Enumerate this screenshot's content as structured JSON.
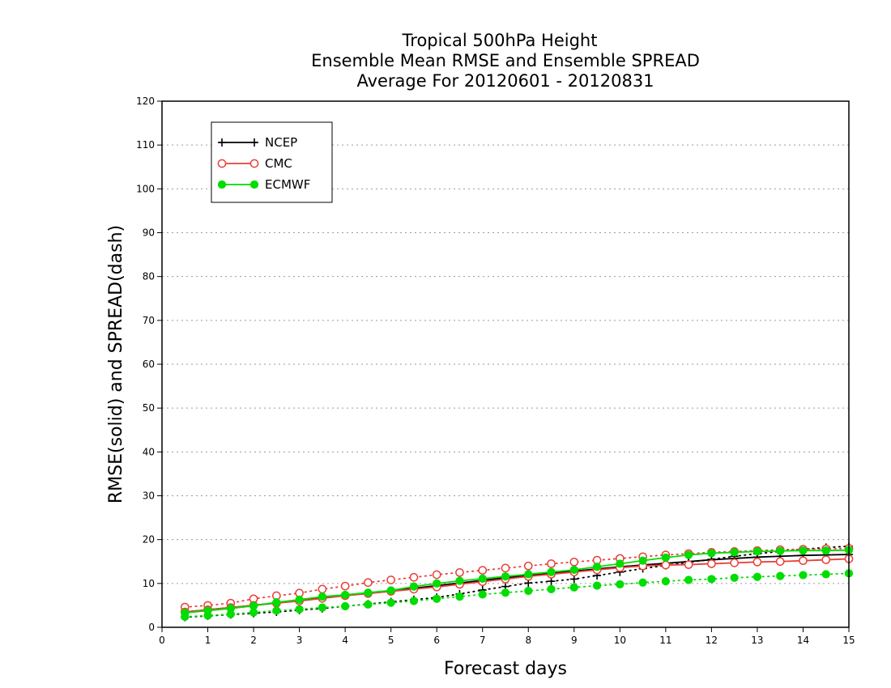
{
  "chart_data": {
    "type": "line",
    "title_lines": [
      "Tropical 500hPa Height",
      "Ensemble Mean RMSE and Ensemble SPREAD",
      "Average For 20120601 - 20120831"
    ],
    "xlabel": "Forecast days",
    "ylabel": "RMSE(solid) and SPREAD(dash)",
    "xlim": [
      0,
      15
    ],
    "ylim": [
      0,
      120
    ],
    "x_ticks": [
      0,
      1,
      2,
      3,
      4,
      5,
      6,
      7,
      8,
      9,
      10,
      11,
      12,
      13,
      14,
      15
    ],
    "y_ticks": [
      0,
      10,
      20,
      30,
      40,
      50,
      60,
      70,
      80,
      90,
      100,
      110,
      120
    ],
    "grid": "horizontal dotted",
    "legend_position": "top-left",
    "x": [
      0.5,
      1,
      1.5,
      2,
      2.5,
      3,
      3.5,
      4,
      4.5,
      5,
      5.5,
      6,
      6.5,
      7,
      7.5,
      8,
      8.5,
      9,
      9.5,
      10,
      10.5,
      11,
      11.5,
      12,
      12.5,
      13,
      13.5,
      14,
      14.5,
      15
    ],
    "series": [
      {
        "name": "NCEP",
        "color": "#000000",
        "marker": "plus",
        "rmse": [
          3.5,
          4.0,
          4.5,
          5.0,
          5.6,
          6.2,
          6.8,
          7.3,
          7.8,
          8.3,
          8.9,
          9.5,
          10.1,
          10.7,
          11.3,
          11.8,
          12.3,
          12.8,
          13.3,
          13.8,
          14.2,
          14.6,
          15.0,
          15.4,
          15.7,
          16.0,
          16.2,
          16.4,
          16.5,
          16.6
        ],
        "spread": [
          2.3,
          2.6,
          2.9,
          3.2,
          3.5,
          3.9,
          4.3,
          4.8,
          5.3,
          5.8,
          6.3,
          6.8,
          7.6,
          8.5,
          9.3,
          10.1,
          10.5,
          11.0,
          11.8,
          12.6,
          13.4,
          14.1,
          14.8,
          15.5,
          16.2,
          16.8,
          17.3,
          17.8,
          18.2,
          18.5
        ]
      },
      {
        "name": "CMC",
        "color": "#e8403a",
        "marker": "open-circle",
        "rmse": [
          3.5,
          4.0,
          4.5,
          5.0,
          5.5,
          6.0,
          6.6,
          7.2,
          7.7,
          8.2,
          8.7,
          9.2,
          9.8,
          10.4,
          11.0,
          11.6,
          12.1,
          12.6,
          13.1,
          13.6,
          14.0,
          14.2,
          14.3,
          14.5,
          14.7,
          14.9,
          15.0,
          15.2,
          15.4,
          15.6
        ],
        "spread": [
          4.6,
          5.0,
          5.5,
          6.5,
          7.2,
          7.8,
          8.7,
          9.4,
          10.2,
          10.8,
          11.4,
          12.0,
          12.5,
          13.0,
          13.5,
          14.0,
          14.5,
          14.9,
          15.3,
          15.7,
          16.1,
          16.5,
          16.8,
          17.1,
          17.3,
          17.5,
          17.7,
          17.8,
          17.9,
          18.0
        ]
      },
      {
        "name": "ECMWF",
        "color": "#00dd00",
        "marker": "filled-circle",
        "rmse": [
          3.3,
          3.8,
          4.3,
          4.9,
          5.7,
          6.3,
          7.0,
          7.4,
          7.9,
          8.4,
          9.3,
          10.0,
          10.6,
          11.1,
          11.6,
          12.1,
          12.6,
          13.1,
          13.8,
          14.5,
          15.2,
          15.9,
          16.5,
          16.9,
          17.1,
          17.3,
          17.4,
          17.5,
          17.5,
          17.6
        ],
        "spread": [
          2.4,
          2.7,
          3.0,
          3.4,
          3.8,
          4.1,
          4.5,
          4.8,
          5.2,
          5.6,
          6.0,
          6.5,
          7.0,
          7.5,
          7.9,
          8.3,
          8.7,
          9.1,
          9.5,
          9.8,
          10.2,
          10.5,
          10.8,
          11.0,
          11.3,
          11.5,
          11.7,
          11.9,
          12.1,
          12.3
        ]
      }
    ]
  }
}
